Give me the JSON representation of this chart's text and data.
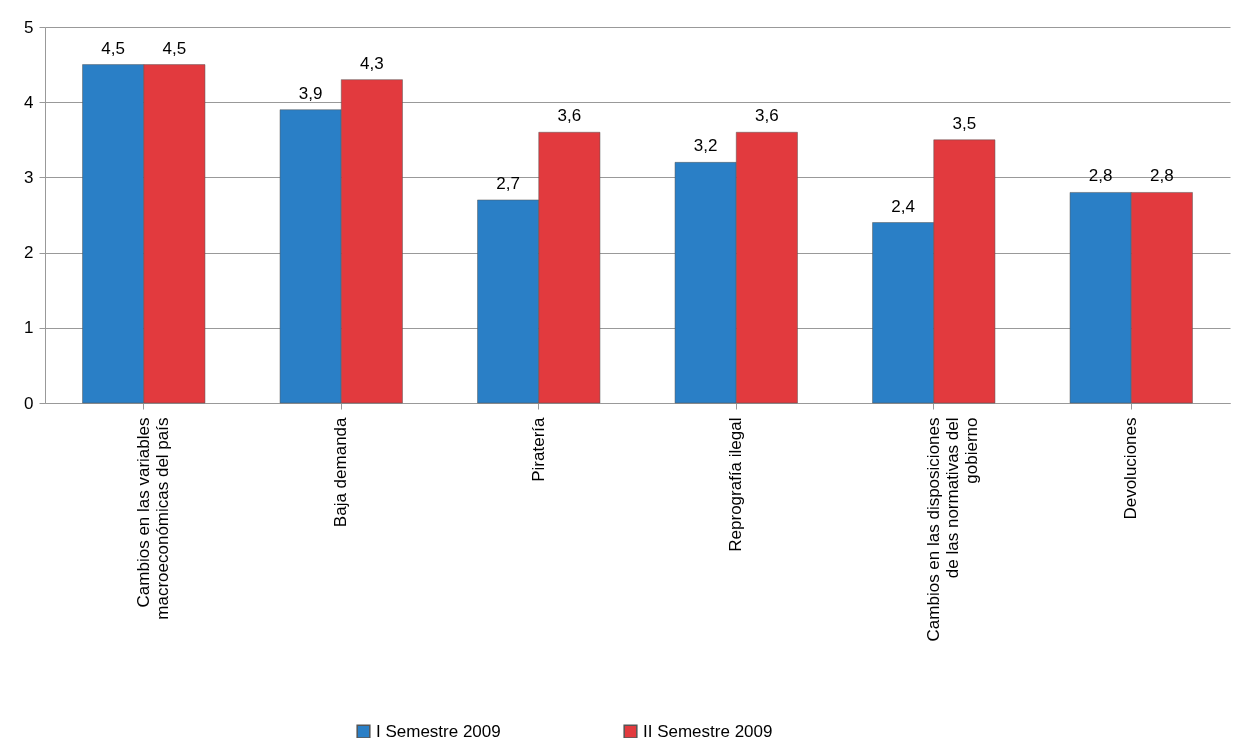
{
  "chart_data": {
    "type": "bar",
    "categories": [
      "Cambios en las variables macroeconómicas del país",
      "Baja demanda",
      "Piratería",
      "Reprografía ilegal",
      "Cambios en las disposiciones de las normativas del gobierno",
      "Devoluciones"
    ],
    "series": [
      {
        "name": "I Semestre 2009",
        "color": "#2a7fc6",
        "values": [
          4.5,
          3.9,
          2.7,
          3.2,
          2.4,
          2.8
        ],
        "value_labels": [
          "4,5",
          "3,9",
          "2,7",
          "3,2",
          "2,4",
          "2,8"
        ]
      },
      {
        "name": "II Semestre 2009",
        "color": "#e23a3e",
        "values": [
          4.5,
          4.3,
          3.6,
          3.6,
          3.5,
          2.8
        ],
        "value_labels": [
          "4,5",
          "4,3",
          "3,6",
          "3,6",
          "3,5",
          "2,8"
        ]
      }
    ],
    "ylim": [
      0,
      5
    ],
    "yticks": [
      0,
      1,
      2,
      3,
      4,
      5
    ],
    "grid": "y",
    "legend": "bottom"
  }
}
